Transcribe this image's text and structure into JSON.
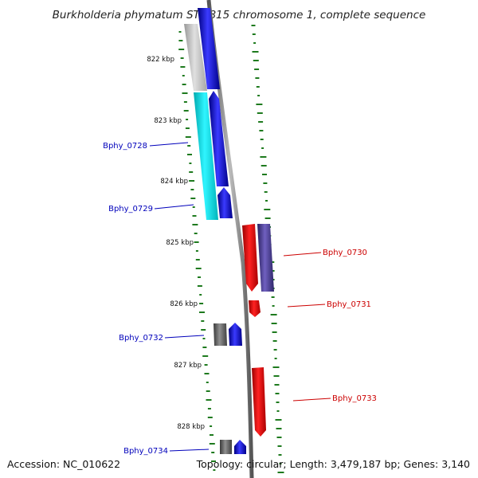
{
  "header": {
    "title": "Burkholderia phymatum STM815 chromosome 1, complete sequence"
  },
  "footer": {
    "accession": "Accession: NC_010622",
    "topology": "Topology: circular; Length: 3,479,187 bp; Genes: 3,140"
  },
  "colors": {
    "backbone": "#888888",
    "forward_gene": "#0000ee",
    "reverse_gene": "#ee0000",
    "cyan_feature": "#00e5ee",
    "gray_feature": "#666666",
    "slate_feature": "#483d8b",
    "gc_skew": "#1e7a1e",
    "label_forward": "#0000bb",
    "label_reverse": "#cc0000"
  },
  "scale": {
    "unit": "kbp",
    "ticks": [
      "822 kbp",
      "823 kbp",
      "824 kbp",
      "825 kbp",
      "826 kbp",
      "827 kbp",
      "828 kbp"
    ]
  },
  "genes": [
    {
      "name": "Bphy_0728",
      "side": "left",
      "strand": "+"
    },
    {
      "name": "Bphy_0729",
      "side": "left",
      "strand": "+"
    },
    {
      "name": "Bphy_0730",
      "side": "right",
      "strand": "-"
    },
    {
      "name": "Bphy_0731",
      "side": "right",
      "strand": "-"
    },
    {
      "name": "Bphy_0732",
      "side": "left",
      "strand": "+"
    },
    {
      "name": "Bphy_0733",
      "side": "right",
      "strand": "-"
    },
    {
      "name": "Bphy_0734",
      "side": "left",
      "strand": "+"
    }
  ]
}
